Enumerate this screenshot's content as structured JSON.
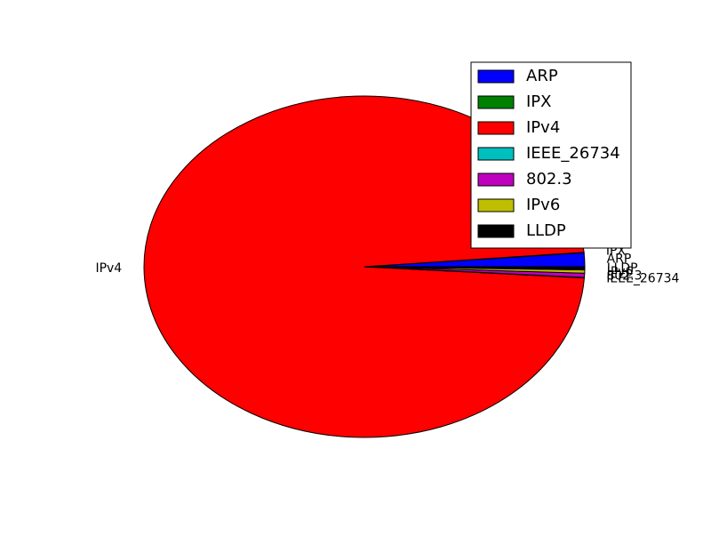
{
  "chart_data": {
    "type": "pie",
    "title": "",
    "legend_position": "top-right",
    "start_angle_deg": 0,
    "direction": "counterclockwise",
    "slices": [
      {
        "label": "ARP",
        "value": 1.3,
        "color": "#0000ff"
      },
      {
        "label": "IPX",
        "value": 0.05,
        "color": "#008000"
      },
      {
        "label": "IPv4",
        "value": 97.6,
        "color": "#ff0000"
      },
      {
        "label": "IEEE_26734",
        "value": 0.05,
        "color": "#00bfbf"
      },
      {
        "label": "802.3",
        "value": 0.4,
        "color": "#bf00bf"
      },
      {
        "label": "IPv6",
        "value": 0.3,
        "color": "#bfbf00"
      },
      {
        "label": "LLDP",
        "value": 0.3,
        "color": "#000000"
      }
    ]
  }
}
